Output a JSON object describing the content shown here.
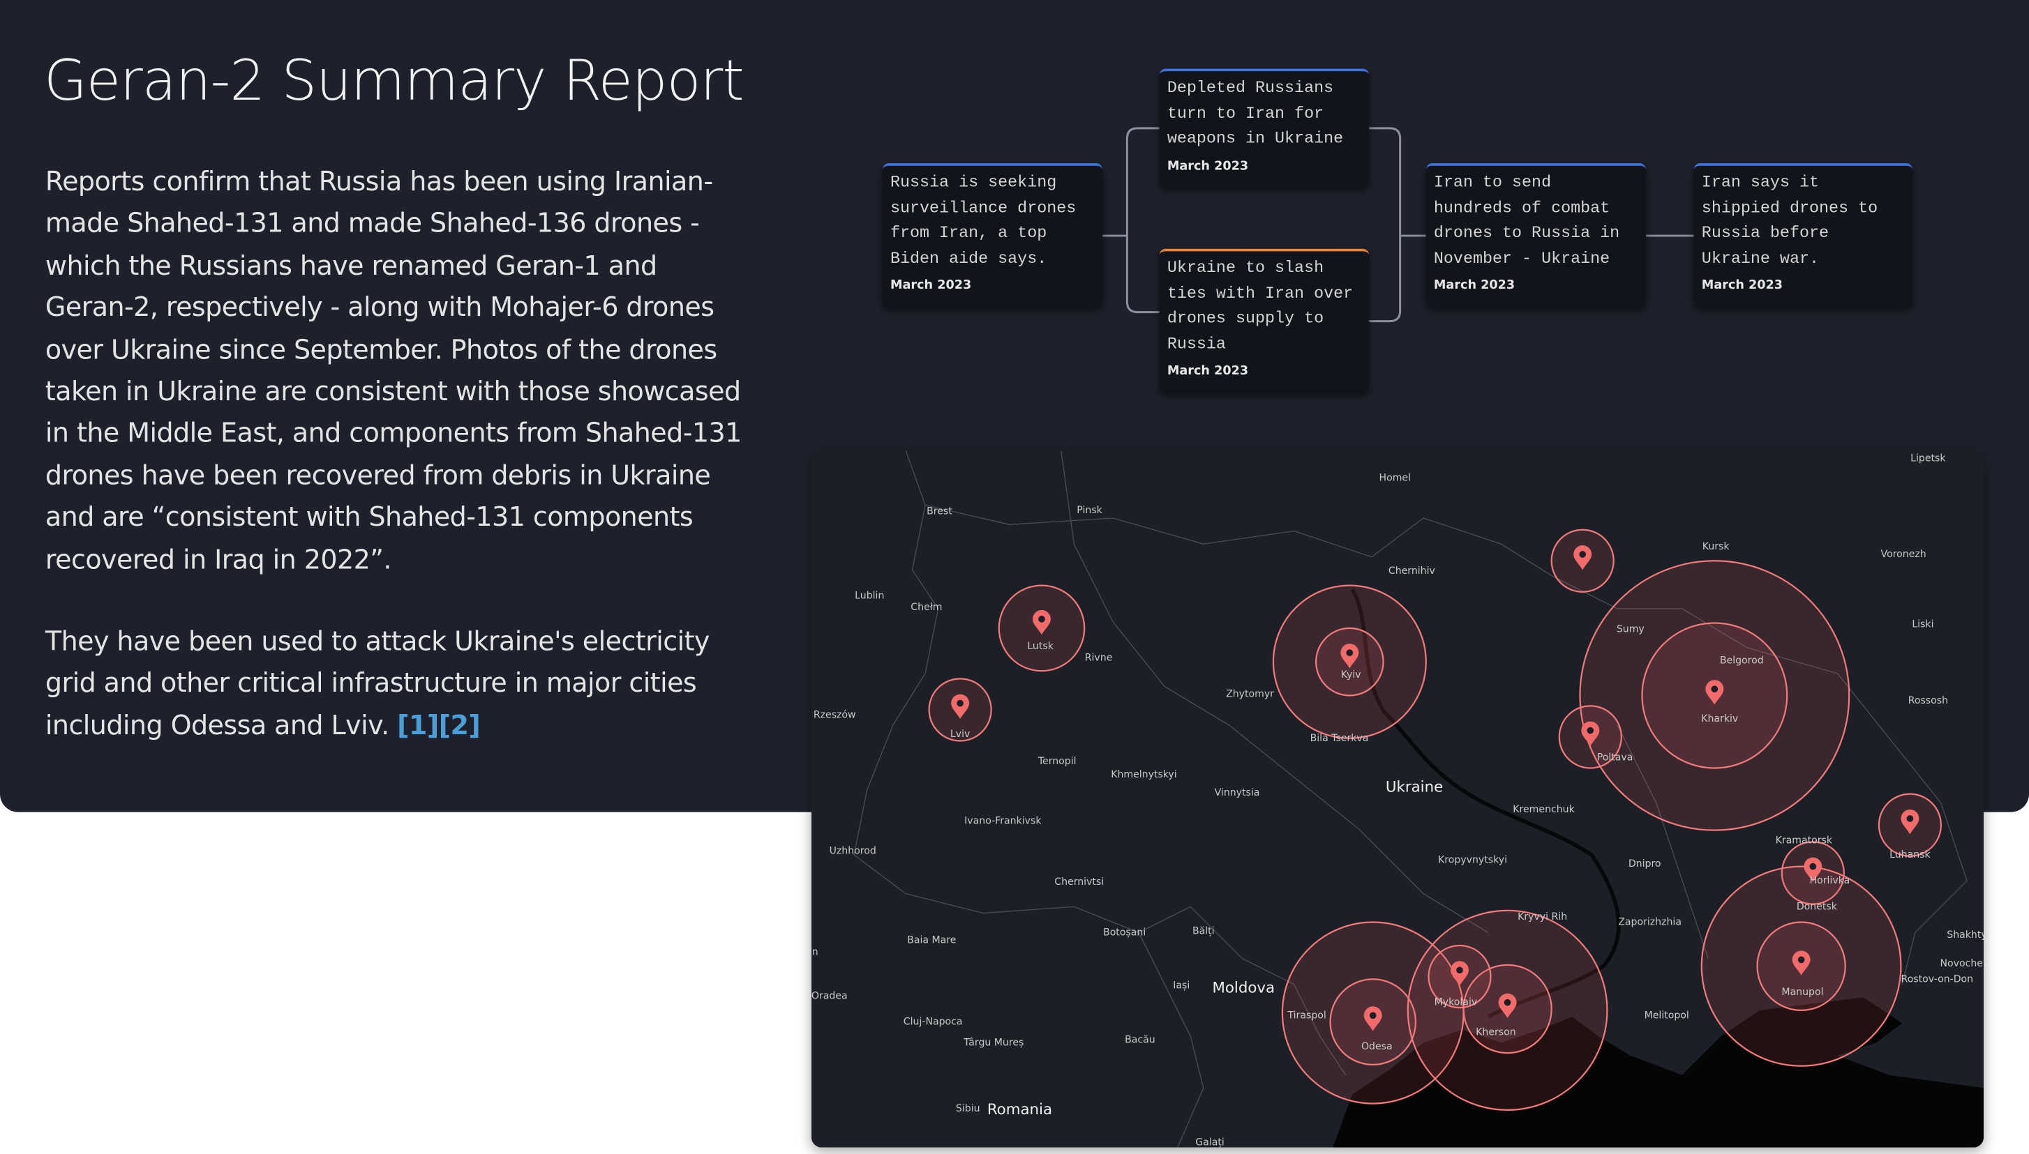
{
  "header": {
    "title": "Geran-2 Summary Report"
  },
  "body": {
    "paragraphs": [
      "Reports confirm that Russia has been using Iranian-made Shahed-131 and made Shahed-136 drones - which the Russians have renamed Geran-1 and Geran-2, respectively - along with Mohajer-6 drones over Ukraine since September. Photos of the drones taken in Ukraine are consistent with those showcased in the Middle East, and components from Shahed-131 drones have been recovered from debris in Ukraine and are “consistent with Shahed-131 components recovered in Iraq in 2022”.",
      "They have been used to attack Ukraine's electricity grid and other critical infrastructure in major cities including Odessa and Lviv."
    ],
    "links": [
      "[1]",
      "[2]"
    ]
  },
  "timeline": {
    "items": [
      {
        "text": "Russia is seeking surveillance drones from Iran, a top Biden aide says.",
        "date": "March 2023"
      },
      {
        "text": "Depleted Russians turn to Iran for weapons in Ukraine",
        "date": "March 2023"
      },
      {
        "text": "Ukraine to slash ties with Iran over drones supply to Russia",
        "date": "March 2023"
      },
      {
        "text": "Iran to send hundreds of combat drones to Russia in November - Ukraine",
        "date": "March 2023"
      },
      {
        "text": "Iran says it shippied drones to Russia before Ukraine war.",
        "date": "March 2023"
      }
    ]
  },
  "map": {
    "labels": [
      "Homel",
      "Pinsk",
      "Brest",
      "Lipetsk",
      "Kursk",
      "Voronezh",
      "Chernihiv",
      "Lublin",
      "Chełm",
      "Lutsk",
      "Rivne",
      "Sumy",
      "Belgorod",
      "Liski",
      "Kyiv",
      "Zhytomyr",
      "Kharkiv",
      "Rzeszów",
      "Rossosh",
      "Lviv",
      "Bila Tserkva",
      "Poltava",
      "Ternopil",
      "Khmelnytskyi",
      "Ukraine",
      "Vinnytsia",
      "Kremenchuk",
      "Ivano-Frankivsk",
      "Luhansk",
      "Uzhhorod",
      "Kramatorsk",
      "Horlivka",
      "Kropyvnytskyi",
      "Dnipro",
      "Chernivtsi",
      "Donetsk",
      "Kryvyi Rih",
      "Zaporizhzhia",
      "Botoșani",
      "Bălți",
      "Shakhty",
      "Baia Mare",
      "Novocherkassk",
      "Rostov-on-Don",
      "Moldova",
      "Iași",
      "Mykolaiv",
      "Manupol",
      "Oradea",
      "Tiraspol",
      "Melitopol",
      "Cluj-Napoca",
      "Kherson",
      "Bacău",
      "Târgu Mureș",
      "Odesa",
      "Sibiu",
      "Romania",
      "Galați",
      "Debrecen"
    ]
  }
}
